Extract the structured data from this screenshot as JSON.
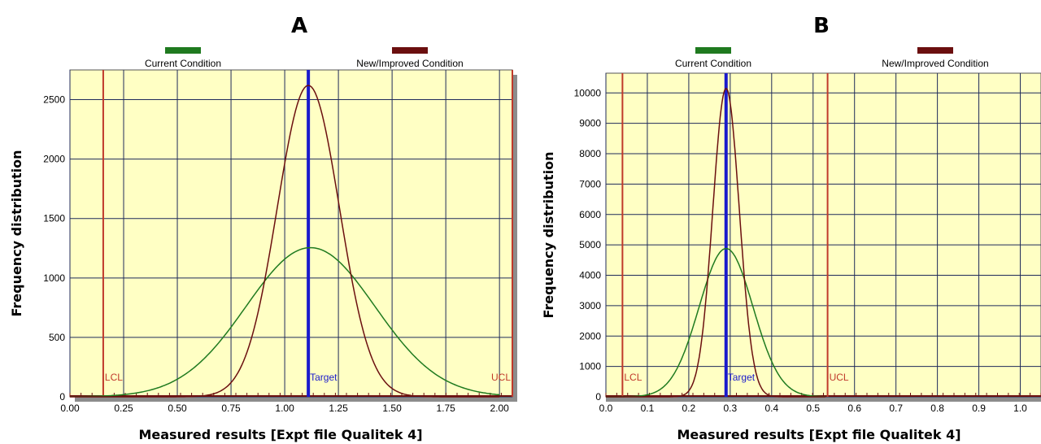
{
  "chart_data": [
    {
      "panel": "A",
      "type": "line",
      "title": "",
      "xlabel": "Measured results [Expt file Qualitek 4]",
      "ylabel": "Frequency distribution",
      "xlim": [
        0.0,
        2.06
      ],
      "ylim": [
        0,
        2750
      ],
      "x_ticks": [
        "0.00",
        "0.25",
        "0.50",
        "0.75",
        "1.00",
        "1.25",
        "1.50",
        "1.75",
        "2.00"
      ],
      "y_ticks": [
        "0",
        "500",
        "1000",
        "1500",
        "2000",
        "2500"
      ],
      "grid": true,
      "legend_placement": "top",
      "series": [
        {
          "name": "Current Condition",
          "color": "#1f7a1f",
          "distribution": "normal",
          "mean": 1.12,
          "sd": 0.3,
          "peak": 1255,
          "x_range": [
            0.0,
            2.0
          ]
        },
        {
          "name": "New/Improved Condition",
          "color": "#6b0f0f",
          "distribution": "normal",
          "mean": 1.11,
          "sd": 0.145,
          "peak": 2620,
          "x_range": [
            0.0,
            2.0
          ]
        }
      ],
      "reference_lines": [
        {
          "label": "LCL",
          "x": 0.155,
          "color": "#c0392b"
        },
        {
          "label": "Target",
          "x": 1.11,
          "color": "#1a1acc"
        },
        {
          "label": "UCL",
          "x": 2.06,
          "color": "#c0392b"
        }
      ]
    },
    {
      "panel": "B",
      "type": "line",
      "title": "",
      "xlabel": "Measured results [Expt file Qualitek 4]",
      "ylabel": "Frequency distribution",
      "xlim": [
        0.0,
        1.05
      ],
      "ylim": [
        0,
        10650
      ],
      "x_ticks": [
        "0.0",
        "0.1",
        "0.2",
        "0.3",
        "0.4",
        "0.5",
        "0.6",
        "0.7",
        "0.8",
        "0.9",
        "1.0"
      ],
      "y_ticks": [
        "0",
        "1000",
        "2000",
        "3000",
        "4000",
        "5000",
        "6000",
        "7000",
        "8000",
        "9000",
        "10000"
      ],
      "grid": true,
      "legend_placement": "top",
      "series": [
        {
          "name": "Current Condition",
          "color": "#1f7a1f",
          "distribution": "normal",
          "mean": 0.29,
          "sd": 0.065,
          "peak": 4880,
          "x_range": [
            0.0,
            0.53
          ]
        },
        {
          "name": "New/Improved Condition",
          "color": "#6b0f0f",
          "distribution": "normal",
          "mean": 0.29,
          "sd": 0.032,
          "peak": 10150,
          "x_range": [
            0.0,
            0.53
          ]
        }
      ],
      "reference_lines": [
        {
          "label": "LCL",
          "x": 0.04,
          "color": "#c0392b"
        },
        {
          "label": "Target",
          "x": 0.29,
          "color": "#1a1acc"
        },
        {
          "label": "UCL",
          "x": 0.535,
          "color": "#c0392b"
        }
      ]
    }
  ]
}
